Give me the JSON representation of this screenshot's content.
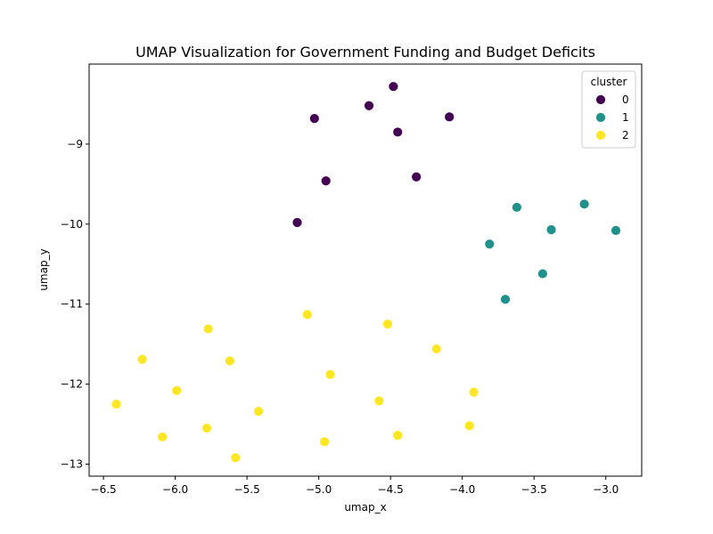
{
  "chart_data": {
    "type": "scatter",
    "title": "UMAP Visualization for Government Funding and Budget Deficits",
    "xlabel": "umap_x",
    "ylabel": "umap_y",
    "xlim": [
      -6.6,
      -2.75
    ],
    "ylim": [
      -13.15,
      -8.0
    ],
    "x_ticks": [
      -6.5,
      -6.0,
      -5.5,
      -5.0,
      -4.5,
      -4.0,
      -3.5,
      -3.0
    ],
    "x_tick_labels": [
      "−6.5",
      "−6.0",
      "−5.5",
      "−5.0",
      "−4.5",
      "−4.0",
      "−3.5",
      "−3.0"
    ],
    "y_ticks": [
      -9,
      -10,
      -11,
      -12,
      -13
    ],
    "y_tick_labels": [
      "−9",
      "−10",
      "−11",
      "−12",
      "−13"
    ],
    "grid": false,
    "legend": {
      "title": "cluster",
      "placement": "top-right"
    },
    "series": [
      {
        "name": "0",
        "color": "#440154",
        "points": [
          [
            -4.48,
            -8.28
          ],
          [
            -4.65,
            -8.52
          ],
          [
            -5.03,
            -8.68
          ],
          [
            -4.09,
            -8.66
          ],
          [
            -4.45,
            -8.85
          ],
          [
            -4.32,
            -9.41
          ],
          [
            -4.95,
            -9.46
          ],
          [
            -5.15,
            -9.98
          ]
        ]
      },
      {
        "name": "1",
        "color": "#21918c",
        "points": [
          [
            -3.15,
            -9.75
          ],
          [
            -3.62,
            -9.79
          ],
          [
            -3.38,
            -10.07
          ],
          [
            -2.93,
            -10.08
          ],
          [
            -3.81,
            -10.25
          ],
          [
            -3.44,
            -10.62
          ],
          [
            -3.7,
            -10.94
          ]
        ]
      },
      {
        "name": "2",
        "color": "#fde725",
        "points": [
          [
            -5.08,
            -11.13
          ],
          [
            -4.52,
            -11.25
          ],
          [
            -5.77,
            -11.31
          ],
          [
            -4.18,
            -11.56
          ],
          [
            -6.23,
            -11.69
          ],
          [
            -5.62,
            -11.71
          ],
          [
            -4.92,
            -11.88
          ],
          [
            -5.99,
            -12.08
          ],
          [
            -3.92,
            -12.1
          ],
          [
            -4.58,
            -12.21
          ],
          [
            -6.41,
            -12.25
          ],
          [
            -5.42,
            -12.34
          ],
          [
            -3.95,
            -12.52
          ],
          [
            -5.78,
            -12.55
          ],
          [
            -4.45,
            -12.64
          ],
          [
            -6.09,
            -12.66
          ],
          [
            -4.96,
            -12.72
          ],
          [
            -5.58,
            -12.92
          ]
        ]
      }
    ]
  }
}
